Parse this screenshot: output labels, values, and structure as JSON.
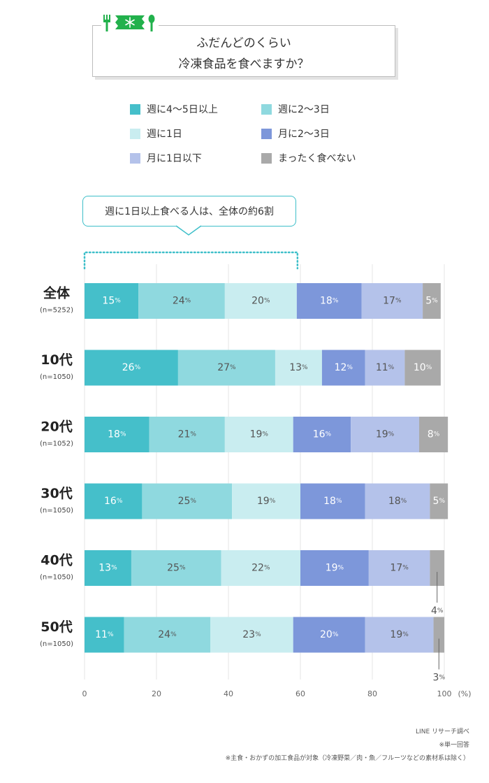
{
  "title": {
    "line1": "ふだんどのくらい",
    "line2": "冷凍食品を食べますか？"
  },
  "callout": {
    "text": "週に1日以上食べる人は、全体の約6割"
  },
  "legend": [
    {
      "label": "週に4〜5日以上",
      "color": "#45bfca"
    },
    {
      "label": "週に2〜3日",
      "color": "#8fd9df"
    },
    {
      "label": "週に1日",
      "color": "#c9edf0"
    },
    {
      "label": "月に2〜3日",
      "color": "#7d97da"
    },
    {
      "label": "月に1日以下",
      "color": "#b4c2ea"
    },
    {
      "label": "まったく食べない",
      "color": "#a9a9a9"
    }
  ],
  "chart_data": {
    "type": "bar",
    "orientation": "horizontal",
    "stacked": true,
    "categories": [
      {
        "name": "全体",
        "n": "(n=5252)"
      },
      {
        "name": "10代",
        "n": "(n=1050)"
      },
      {
        "name": "20代",
        "n": "(n=1052)"
      },
      {
        "name": "30代",
        "n": "(n=1050)"
      },
      {
        "name": "40代",
        "n": "(n=1050)"
      },
      {
        "name": "50代",
        "n": "(n=1050)"
      }
    ],
    "series": [
      {
        "name": "週に4〜5日以上",
        "values": [
          15,
          26,
          18,
          16,
          13,
          11
        ]
      },
      {
        "name": "週に2〜3日",
        "values": [
          24,
          27,
          21,
          25,
          25,
          24
        ]
      },
      {
        "name": "週に1日",
        "values": [
          20,
          13,
          19,
          19,
          22,
          23
        ]
      },
      {
        "name": "月に2〜3日",
        "values": [
          18,
          12,
          16,
          18,
          19,
          20
        ]
      },
      {
        "name": "月に1日以下",
        "values": [
          17,
          11,
          19,
          18,
          17,
          19
        ]
      },
      {
        "name": "まったく食べない",
        "values": [
          5,
          10,
          8,
          5,
          4,
          3
        ]
      }
    ],
    "xlim": [
      0,
      100
    ],
    "xticks": [
      0,
      20,
      40,
      60,
      80,
      100
    ],
    "unit_label": "(%)",
    "value_suffix": "%",
    "grid": true,
    "legend_position": "top"
  },
  "footnotes": [
    "LINE リサーチ調べ",
    "※単一回答",
    "※主食・おかずの加工食品が対象（冷凍野菜／肉・魚／フルーツなどの素材系は除く）"
  ]
}
